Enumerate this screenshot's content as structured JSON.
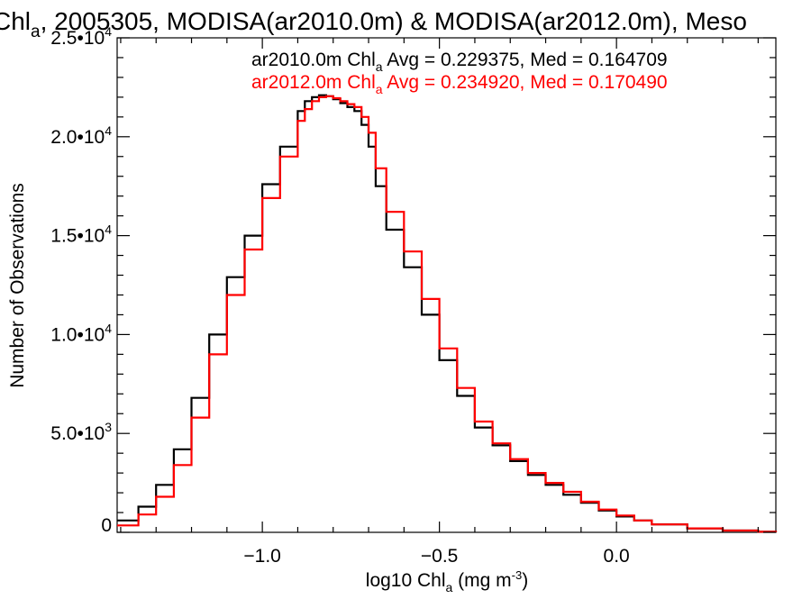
{
  "chart_data": {
    "type": "line",
    "title_prefix": "Chl",
    "title_sub": "a",
    "title_rest": ", 2005305, MODISA(ar2010.0m) & MODISA(ar2012.0m), Meso",
    "xlabel_prefix": "log10 Chl",
    "xlabel_sub": "a",
    "xlabel_units": " (mg m",
    "xlabel_exp": "-3",
    "xlabel_close": ")",
    "ylabel": "Number of Observations",
    "xlim": [
      -1.41,
      0.45
    ],
    "ylim": [
      0,
      25000
    ],
    "x_ticks": [
      {
        "value": -1.0,
        "label": "−1.0"
      },
      {
        "value": -0.5,
        "label": "−0.5"
      },
      {
        "value": 0.0,
        "label": "0.0"
      }
    ],
    "y_ticks": [
      {
        "value": 0,
        "mantissa": "0",
        "exp": ""
      },
      {
        "value": 5000,
        "mantissa": "5.0•10",
        "exp": "3"
      },
      {
        "value": 10000,
        "mantissa": "1.0•10",
        "exp": "4"
      },
      {
        "value": 15000,
        "mantissa": "1.5•10",
        "exp": "4"
      },
      {
        "value": 20000,
        "mantissa": "2.0•10",
        "exp": "4"
      },
      {
        "value": 25000,
        "mantissa": "2.5•10",
        "exp": "4"
      }
    ],
    "series": [
      {
        "name": "ar2010.0m",
        "color": "#000000",
        "legend": {
          "pre": "ar2010.0m Chl",
          "sub": "a",
          "post": " Avg = 0.229375, Med = 0.164709"
        },
        "x": [
          -1.41,
          -1.35,
          -1.3,
          -1.25,
          -1.2,
          -1.15,
          -1.1,
          -1.05,
          -1.0,
          -0.95,
          -0.9,
          -0.88,
          -0.86,
          -0.84,
          -0.82,
          -0.8,
          -0.78,
          -0.76,
          -0.74,
          -0.72,
          -0.7,
          -0.68,
          -0.65,
          -0.6,
          -0.55,
          -0.5,
          -0.45,
          -0.4,
          -0.35,
          -0.3,
          -0.25,
          -0.2,
          -0.15,
          -0.1,
          -0.05,
          0.0,
          0.05,
          0.1,
          0.2,
          0.3,
          0.4,
          0.45
        ],
        "values": [
          600,
          1300,
          2400,
          4200,
          6800,
          10000,
          12900,
          15000,
          17600,
          19500,
          21300,
          21800,
          22000,
          22100,
          22050,
          21900,
          21700,
          21500,
          21300,
          20600,
          19500,
          17500,
          15300,
          13400,
          11000,
          8700,
          6900,
          5300,
          4400,
          3600,
          2900,
          2400,
          1900,
          1500,
          1100,
          800,
          600,
          400,
          200,
          90,
          30,
          10
        ]
      },
      {
        "name": "ar2012.0m",
        "color": "#ff0000",
        "legend": {
          "pre": "ar2012.0m Chl",
          "sub": "a",
          "post": " Avg = 0.234920, Med = 0.170490"
        },
        "x": [
          -1.41,
          -1.35,
          -1.3,
          -1.25,
          -1.2,
          -1.15,
          -1.1,
          -1.05,
          -1.0,
          -0.95,
          -0.9,
          -0.88,
          -0.86,
          -0.84,
          -0.82,
          -0.8,
          -0.78,
          -0.76,
          -0.74,
          -0.72,
          -0.7,
          -0.68,
          -0.65,
          -0.6,
          -0.55,
          -0.5,
          -0.45,
          -0.4,
          -0.35,
          -0.3,
          -0.25,
          -0.2,
          -0.15,
          -0.1,
          -0.05,
          0.0,
          0.05,
          0.1,
          0.2,
          0.3,
          0.4,
          0.45
        ],
        "values": [
          350,
          900,
          1800,
          3400,
          5800,
          9000,
          12000,
          14300,
          16900,
          19000,
          20800,
          21400,
          21800,
          22000,
          22050,
          21950,
          21800,
          21650,
          21500,
          21000,
          20200,
          18400,
          16200,
          14200,
          11800,
          9300,
          7300,
          5600,
          4500,
          3700,
          3000,
          2500,
          2050,
          1550,
          1150,
          850,
          600,
          400,
          200,
          90,
          30,
          10
        ]
      }
    ]
  }
}
